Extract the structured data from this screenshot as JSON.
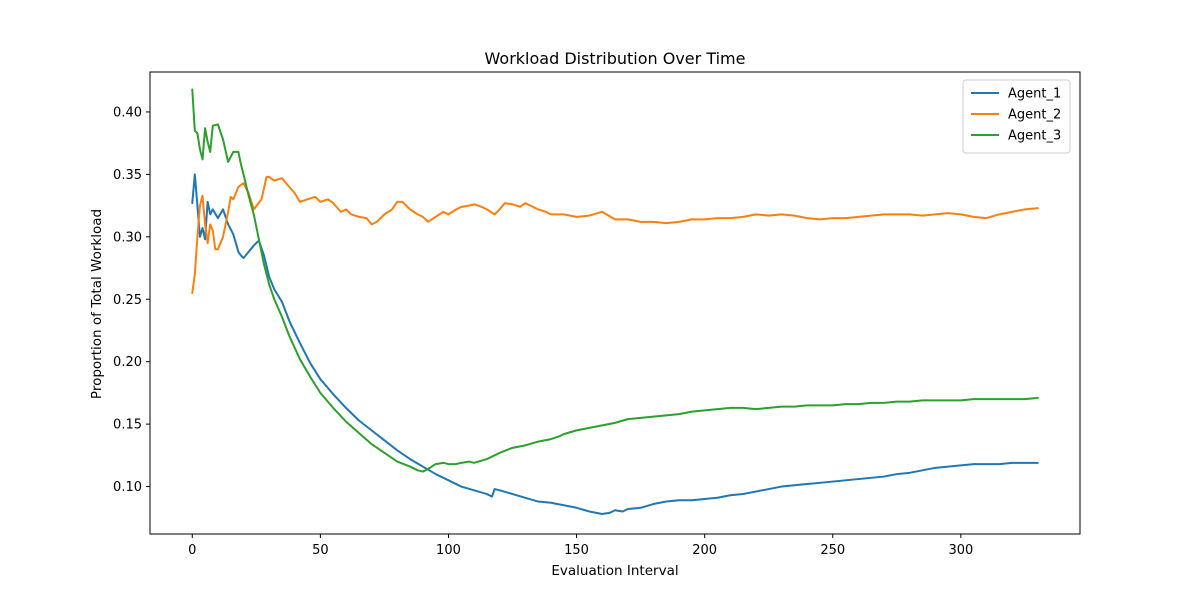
{
  "chart_data": {
    "type": "line",
    "title": "Workload Distribution Over Time",
    "xlabel": "Evaluation Interval",
    "ylabel": "Proportion of Total Workload",
    "xlim": [
      -16.5,
      346.5
    ],
    "ylim": [
      0.062,
      0.432
    ],
    "xticks": [
      0,
      50,
      100,
      150,
      200,
      250,
      300
    ],
    "xtick_labels": [
      "0",
      "50",
      "100",
      "150",
      "200",
      "250",
      "300"
    ],
    "yticks": [
      0.1,
      0.15,
      0.2,
      0.25,
      0.3,
      0.35,
      0.4
    ],
    "ytick_labels": [
      "0.10",
      "0.15",
      "0.20",
      "0.25",
      "0.30",
      "0.35",
      "0.40"
    ],
    "grid": false,
    "legend_position": "top-right",
    "series": [
      {
        "name": "Agent_1",
        "color": "#1f77b4",
        "x": [
          0,
          1,
          2,
          3,
          4,
          5,
          6,
          7,
          8,
          10,
          12,
          14,
          16,
          18,
          19,
          20,
          22,
          24,
          26,
          28,
          30,
          32,
          35,
          38,
          42,
          46,
          50,
          55,
          60,
          65,
          70,
          75,
          80,
          85,
          90,
          95,
          100,
          105,
          110,
          115,
          117,
          118,
          120,
          125,
          130,
          135,
          140,
          145,
          150,
          155,
          160,
          163,
          165,
          168,
          170,
          175,
          180,
          185,
          190,
          195,
          200,
          205,
          210,
          215,
          220,
          225,
          230,
          235,
          240,
          245,
          250,
          255,
          260,
          265,
          270,
          275,
          280,
          285,
          290,
          295,
          300,
          305,
          310,
          315,
          320,
          325,
          330
        ],
        "y": [
          0.327,
          0.35,
          0.325,
          0.3,
          0.307,
          0.298,
          0.328,
          0.318,
          0.322,
          0.315,
          0.322,
          0.31,
          0.302,
          0.288,
          0.285,
          0.283,
          0.288,
          0.293,
          0.297,
          0.285,
          0.268,
          0.258,
          0.248,
          0.232,
          0.215,
          0.199,
          0.186,
          0.174,
          0.163,
          0.153,
          0.145,
          0.137,
          0.129,
          0.122,
          0.116,
          0.11,
          0.105,
          0.1,
          0.097,
          0.094,
          0.092,
          0.098,
          0.097,
          0.094,
          0.091,
          0.088,
          0.087,
          0.085,
          0.083,
          0.08,
          0.078,
          0.079,
          0.081,
          0.08,
          0.082,
          0.083,
          0.086,
          0.088,
          0.089,
          0.089,
          0.09,
          0.091,
          0.093,
          0.094,
          0.096,
          0.098,
          0.1,
          0.101,
          0.102,
          0.103,
          0.104,
          0.105,
          0.106,
          0.107,
          0.108,
          0.11,
          0.111,
          0.113,
          0.115,
          0.116,
          0.117,
          0.118,
          0.118,
          0.118,
          0.119,
          0.119,
          0.119
        ]
      },
      {
        "name": "Agent_2",
        "color": "#ff7f0e",
        "x": [
          0,
          1,
          2,
          3,
          4,
          5,
          6,
          7,
          8,
          9,
          10,
          11,
          12,
          14,
          15,
          16,
          18,
          20,
          22,
          24,
          27,
          29,
          30,
          32,
          35,
          37,
          40,
          42,
          45,
          48,
          50,
          53,
          55,
          58,
          60,
          62,
          65,
          68,
          70,
          72,
          75,
          78,
          80,
          82,
          85,
          88,
          90,
          92,
          95,
          98,
          100,
          103,
          105,
          108,
          110,
          113,
          115,
          118,
          120,
          122,
          125,
          128,
          130,
          133,
          135,
          138,
          140,
          145,
          150,
          155,
          160,
          165,
          170,
          175,
          180,
          185,
          190,
          195,
          200,
          205,
          210,
          215,
          220,
          225,
          230,
          235,
          240,
          245,
          250,
          255,
          260,
          265,
          270,
          275,
          280,
          285,
          290,
          295,
          300,
          305,
          310,
          315,
          320,
          325,
          330
        ],
        "y": [
          0.255,
          0.27,
          0.3,
          0.325,
          0.333,
          0.31,
          0.295,
          0.31,
          0.305,
          0.29,
          0.29,
          0.295,
          0.3,
          0.32,
          0.332,
          0.33,
          0.34,
          0.343,
          0.335,
          0.322,
          0.33,
          0.348,
          0.348,
          0.345,
          0.347,
          0.342,
          0.335,
          0.328,
          0.33,
          0.332,
          0.328,
          0.33,
          0.327,
          0.32,
          0.322,
          0.318,
          0.316,
          0.315,
          0.31,
          0.312,
          0.318,
          0.322,
          0.328,
          0.328,
          0.322,
          0.318,
          0.316,
          0.312,
          0.316,
          0.32,
          0.318,
          0.322,
          0.324,
          0.325,
          0.326,
          0.324,
          0.322,
          0.318,
          0.322,
          0.327,
          0.326,
          0.324,
          0.327,
          0.324,
          0.322,
          0.32,
          0.318,
          0.318,
          0.316,
          0.317,
          0.32,
          0.314,
          0.314,
          0.312,
          0.312,
          0.311,
          0.312,
          0.314,
          0.314,
          0.315,
          0.315,
          0.316,
          0.318,
          0.317,
          0.318,
          0.317,
          0.315,
          0.314,
          0.315,
          0.315,
          0.316,
          0.317,
          0.318,
          0.318,
          0.318,
          0.317,
          0.318,
          0.319,
          0.318,
          0.316,
          0.315,
          0.318,
          0.32,
          0.322,
          0.323
        ]
      },
      {
        "name": "Agent_3",
        "color": "#2ca02c",
        "x": [
          0,
          1,
          2,
          3,
          4,
          5,
          6,
          7,
          8,
          10,
          12,
          14,
          16,
          18,
          19,
          20,
          22,
          24,
          26,
          28,
          30,
          32,
          35,
          38,
          42,
          46,
          50,
          55,
          60,
          65,
          70,
          75,
          80,
          85,
          88,
          90,
          92,
          95,
          98,
          100,
          103,
          105,
          108,
          110,
          115,
          120,
          125,
          130,
          135,
          140,
          143,
          145,
          150,
          155,
          160,
          165,
          170,
          175,
          180,
          185,
          190,
          195,
          200,
          205,
          210,
          215,
          220,
          225,
          230,
          235,
          240,
          245,
          250,
          255,
          260,
          265,
          270,
          275,
          280,
          285,
          290,
          295,
          300,
          305,
          310,
          315,
          320,
          325,
          330
        ],
        "y": [
          0.418,
          0.385,
          0.383,
          0.37,
          0.362,
          0.387,
          0.376,
          0.368,
          0.389,
          0.39,
          0.378,
          0.36,
          0.368,
          0.368,
          0.358,
          0.35,
          0.333,
          0.318,
          0.298,
          0.278,
          0.262,
          0.25,
          0.236,
          0.22,
          0.202,
          0.188,
          0.175,
          0.163,
          0.152,
          0.143,
          0.134,
          0.127,
          0.12,
          0.116,
          0.113,
          0.112,
          0.114,
          0.118,
          0.119,
          0.118,
          0.118,
          0.119,
          0.12,
          0.119,
          0.122,
          0.127,
          0.131,
          0.133,
          0.136,
          0.138,
          0.14,
          0.142,
          0.145,
          0.147,
          0.149,
          0.151,
          0.154,
          0.155,
          0.156,
          0.157,
          0.158,
          0.16,
          0.161,
          0.162,
          0.163,
          0.163,
          0.162,
          0.163,
          0.164,
          0.164,
          0.165,
          0.165,
          0.165,
          0.166,
          0.166,
          0.167,
          0.167,
          0.168,
          0.168,
          0.169,
          0.169,
          0.169,
          0.169,
          0.17,
          0.17,
          0.17,
          0.17,
          0.17,
          0.171
        ]
      }
    ]
  }
}
